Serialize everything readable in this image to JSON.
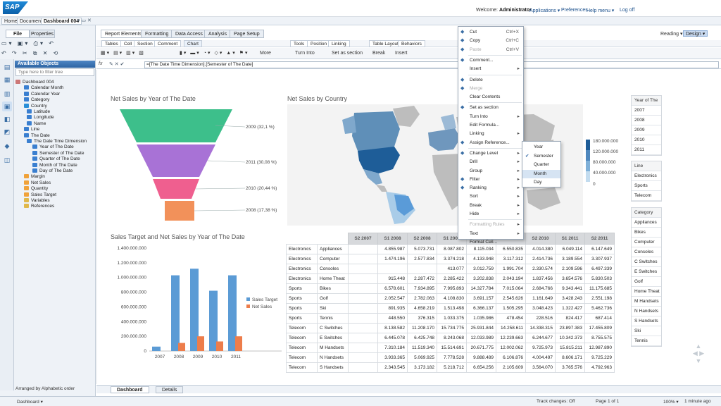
{
  "header": {
    "logo": "SAP",
    "welcome_prefix": "Welcome:",
    "user": "Administrator",
    "links": [
      "Applications ▾",
      "Preferences",
      "Help menu ▾",
      "Log off"
    ]
  },
  "tabs": [
    "Home",
    "Documents",
    "Dashboard 004"
  ],
  "left": {
    "tabs": [
      "File",
      "Properties"
    ],
    "available_objects": "Available Objects",
    "filter_placeholder": "Type here to filter tree",
    "arranged": "Arranged by Alphabetic order",
    "tree": [
      {
        "label": "Dashboard 004",
        "lvl": 0,
        "type": "doc"
      },
      {
        "label": "Calendar Month",
        "lvl": 1,
        "type": "dim"
      },
      {
        "label": "Calendar Year",
        "lvl": 1,
        "type": "dim"
      },
      {
        "label": "Category",
        "lvl": 1,
        "type": "dim"
      },
      {
        "label": "Country",
        "lvl": 1,
        "type": "geo"
      },
      {
        "label": "Latitude",
        "lvl": 2,
        "type": "dim"
      },
      {
        "label": "Longitude",
        "lvl": 2,
        "type": "dim"
      },
      {
        "label": "Name",
        "lvl": 2,
        "type": "dim"
      },
      {
        "label": "Line",
        "lvl": 1,
        "type": "dim"
      },
      {
        "label": "The Date",
        "lvl": 1,
        "type": "dim"
      },
      {
        "label": "The Date Time Dimension",
        "lvl": 2,
        "type": "time"
      },
      {
        "label": "Year of The Date",
        "lvl": 3,
        "type": "dim"
      },
      {
        "label": "Semester of The Date",
        "lvl": 3,
        "type": "dim"
      },
      {
        "label": "Quarter of The Date",
        "lvl": 3,
        "type": "dim"
      },
      {
        "label": "Month of The Date",
        "lvl": 3,
        "type": "dim"
      },
      {
        "label": "Day of The Date",
        "lvl": 3,
        "type": "dim"
      },
      {
        "label": "Margin",
        "lvl": 1,
        "type": "mea"
      },
      {
        "label": "Net Sales",
        "lvl": 1,
        "type": "mea"
      },
      {
        "label": "Quantity",
        "lvl": 1,
        "type": "mea"
      },
      {
        "label": "Sales Target",
        "lvl": 1,
        "type": "mea"
      },
      {
        "label": "Variables",
        "lvl": 1,
        "type": "folder"
      },
      {
        "label": "References",
        "lvl": 1,
        "type": "folder"
      }
    ]
  },
  "ribbon": {
    "tabs": [
      "Report Elements",
      "Formatting",
      "Data Access",
      "Analysis",
      "Page Setup"
    ],
    "sub_tabs": [
      "Tables",
      "Cell",
      "Section",
      "Comment",
      "Chart",
      "Tools",
      "Position",
      "Linking",
      "Table Layout",
      "Behaviors"
    ],
    "reading": "Reading ▾",
    "design": "Design ▾",
    "turn_into": "Turn Into",
    "set_as_section": "Set as section",
    "break": "Break",
    "insert": "Insert",
    "more": "More"
  },
  "formula": {
    "fx": "fx",
    "text": "=[The Date Time Dimension].[Semester of The Date]"
  },
  "charts": {
    "funnel": {
      "title": "Net Sales by Year of The Date",
      "labels": [
        "2009 (32,1 %)",
        "2011 (30,08 %)",
        "2010 (20,44 %)",
        "2008 (17,38 %)"
      ],
      "colors": [
        "#3dbf8b",
        "#a872d6",
        "#ef5f8f",
        "#f2915a"
      ]
    },
    "map": {
      "title": "Net Sales by Country",
      "legend": [
        "180.000.000",
        "120.000.000",
        "80.000.000",
        "40.000.000",
        "0"
      ]
    },
    "bar": {
      "title": "Sales Target and Net Sales by Year of The Date",
      "legend": [
        "Sales Target",
        "Net Sales"
      ],
      "colors": [
        "#5b9bd5",
        "#ed7d4b"
      ]
    }
  },
  "chart_data": [
    {
      "type": "bar",
      "title": "Sales Target and Net Sales by Year of The Date",
      "categories": [
        "2007",
        "2008",
        "2009",
        "2010",
        "2011"
      ],
      "series": [
        {
          "name": "Sales Target",
          "values": [
            60000000,
            1030000000,
            1120000000,
            820000000,
            1030000000
          ]
        },
        {
          "name": "Net Sales",
          "values": [
            0,
            110000000,
            200000000,
            130000000,
            200000000
          ]
        }
      ],
      "ylim": [
        0,
        1400000000
      ],
      "yticks": [
        "0",
        "200.000.000",
        "400.000.000",
        "600.000.000",
        "800.000.000",
        "1.000.000.000",
        "1.200.000.000",
        "1.400.000.000"
      ],
      "legend": "right"
    },
    {
      "type": "funnel",
      "title": "Net Sales by Year of The Date",
      "categories": [
        "2009",
        "2011",
        "2010",
        "2008"
      ],
      "values": [
        32.1,
        30.08,
        20.44,
        17.38
      ]
    }
  ],
  "table": {
    "headers": [
      "S2 2007",
      "S1 2008",
      "S2 2008",
      "S1 2009",
      "S2 2009",
      "S1 2010",
      "S2 2010",
      "S1 2011",
      "S2 2011"
    ],
    "rows": [
      [
        "Electronics",
        "Appliances",
        "",
        "4.855.987",
        "5.073.731",
        "8.087.802",
        "8.115.034",
        "6.550.835",
        "4.014.380",
        "6.049.114",
        "6.147.649"
      ],
      [
        "Electronics",
        "Computer",
        "",
        "1.474.196",
        "2.577.834",
        "3.374.218",
        "4.133.948",
        "3.117.312",
        "2.414.736",
        "3.189.554",
        "3.307.937"
      ],
      [
        "Electronics",
        "Consoles",
        "",
        "",
        "",
        "413.077",
        "3.012.759",
        "1.991.704",
        "2.330.574",
        "2.109.596",
        "6.497.339"
      ],
      [
        "Electronics",
        "Home Theat",
        "",
        "915.448",
        "2.287.472",
        "2.285.422",
        "3.202.838",
        "2.043.194",
        "1.837.456",
        "3.654.576",
        "5.830.503"
      ],
      [
        "Sports",
        "Bikes",
        "",
        "6.578.601",
        "7.934.895",
        "7.995.893",
        "14.327.784",
        "7.015.064",
        "2.684.766",
        "9.343.441",
        "11.175.685"
      ],
      [
        "Sports",
        "Golf",
        "",
        "2.052.547",
        "2.782.063",
        "4.108.830",
        "3.691.157",
        "2.545.626",
        "1.161.649",
        "3.428.243",
        "2.551.198"
      ],
      [
        "Sports",
        "Ski",
        "",
        "891.935",
        "4.658.219",
        "1.513.498",
        "6.366.137",
        "1.505.295",
        "3.048.423",
        "1.322.427",
        "5.462.736"
      ],
      [
        "Sports",
        "Tennis",
        "",
        "448.550",
        "376.315",
        "1.033.375",
        "1.035.986",
        "478.454",
        "228.516",
        "824.417",
        "687.414"
      ],
      [
        "Telecom",
        "C Switches",
        "",
        "8.138.582",
        "11.208.170",
        "15.734.775",
        "25.931.844",
        "14.258.611",
        "14.338.315",
        "23.897.383",
        "17.455.809"
      ],
      [
        "Telecom",
        "E Switches",
        "",
        "6.445.078",
        "6.425.748",
        "8.243.068",
        "12.033.989",
        "12.239.663",
        "6.244.677",
        "10.342.373",
        "8.755.575"
      ],
      [
        "Telecom",
        "M Handsets",
        "",
        "7.310.184",
        "11.519.340",
        "15.514.691",
        "20.671.775",
        "12.002.062",
        "9.725.973",
        "15.815.211",
        "12.987.890"
      ],
      [
        "Telecom",
        "N Handsets",
        "",
        "3.933.365",
        "5.069.925",
        "7.778.528",
        "9.888.489",
        "6.106.876",
        "4.004.497",
        "8.606.171",
        "9.725.229"
      ],
      [
        "Telecom",
        "S Handsets",
        "",
        "2.343.545",
        "3.173.182",
        "5.218.712",
        "6.654.256",
        "2.105.609",
        "3.564.070",
        "3.765.576",
        "4.792.963"
      ]
    ]
  },
  "filters": {
    "year": {
      "head": "Year of The",
      "items": [
        "2007",
        "2008",
        "2009",
        "2010",
        "2011"
      ]
    },
    "line": {
      "head": "Line",
      "items": [
        "Electronics",
        "Sports",
        "Telecom"
      ]
    },
    "category": {
      "head": "Category",
      "items": [
        "Appliances",
        "Bikes",
        "Computer",
        "Consoles",
        "C Switches",
        "E Switches",
        "Golf",
        "Home Theat",
        "M Handsets",
        "N Handsets",
        "S Handsets",
        "Ski",
        "Tennis"
      ]
    }
  },
  "context_menu": [
    {
      "label": "Cut",
      "sc": "Ctrl+X",
      "icon": "scissors-icon"
    },
    {
      "label": "Copy",
      "sc": "Ctrl+C",
      "icon": "copy-icon"
    },
    {
      "label": "Paste",
      "sc": "Ctrl+V",
      "dis": true,
      "icon": "paste-icon"
    },
    {
      "sep": true
    },
    {
      "label": "Comment...",
      "icon": "comment-icon"
    },
    {
      "label": "Insert",
      "arrow": true
    },
    {
      "sep": true
    },
    {
      "label": "Delete",
      "icon": "delete-icon"
    },
    {
      "label": "Merge",
      "dis": true,
      "icon": "merge-icon"
    },
    {
      "label": "Clear Contents"
    },
    {
      "sep": true
    },
    {
      "label": "Set as section",
      "icon": "section-icon"
    },
    {
      "label": "Turn Into",
      "arrow": true
    },
    {
      "label": "Edit Formula..."
    },
    {
      "label": "Linking",
      "arrow": true
    },
    {
      "label": "Assign Reference...",
      "icon": "reference-icon"
    },
    {
      "sep": true
    },
    {
      "label": "Change Level",
      "arrow": true,
      "icon": "level-icon"
    },
    {
      "label": "Drill",
      "arrow": true
    },
    {
      "label": "Group",
      "arrow": true
    },
    {
      "label": "Filter",
      "arrow": true,
      "icon": "filter-icon"
    },
    {
      "label": "Ranking",
      "arrow": true,
      "icon": "ranking-icon"
    },
    {
      "label": "Sort",
      "arrow": true
    },
    {
      "label": "Break",
      "arrow": true
    },
    {
      "label": "Hide",
      "arrow": true
    },
    {
      "sep": true
    },
    {
      "label": "Formatting Rules",
      "arrow": true,
      "dis": true
    },
    {
      "label": "Text",
      "arrow": true
    },
    {
      "label": "Format Cell..."
    }
  ],
  "submenu": [
    {
      "label": "Year"
    },
    {
      "label": "Semester",
      "checked": true
    },
    {
      "label": "Quarter"
    },
    {
      "label": "Month",
      "hl": true
    },
    {
      "label": "Day"
    }
  ],
  "bottom_tabs": [
    "Dashboard",
    "Details"
  ],
  "status": {
    "dashboard": "Dashboard ▾",
    "track": "Track changes: Off",
    "page": "Page 1 of 1",
    "zoom": "100% ▾",
    "time": "1 minute ago"
  }
}
